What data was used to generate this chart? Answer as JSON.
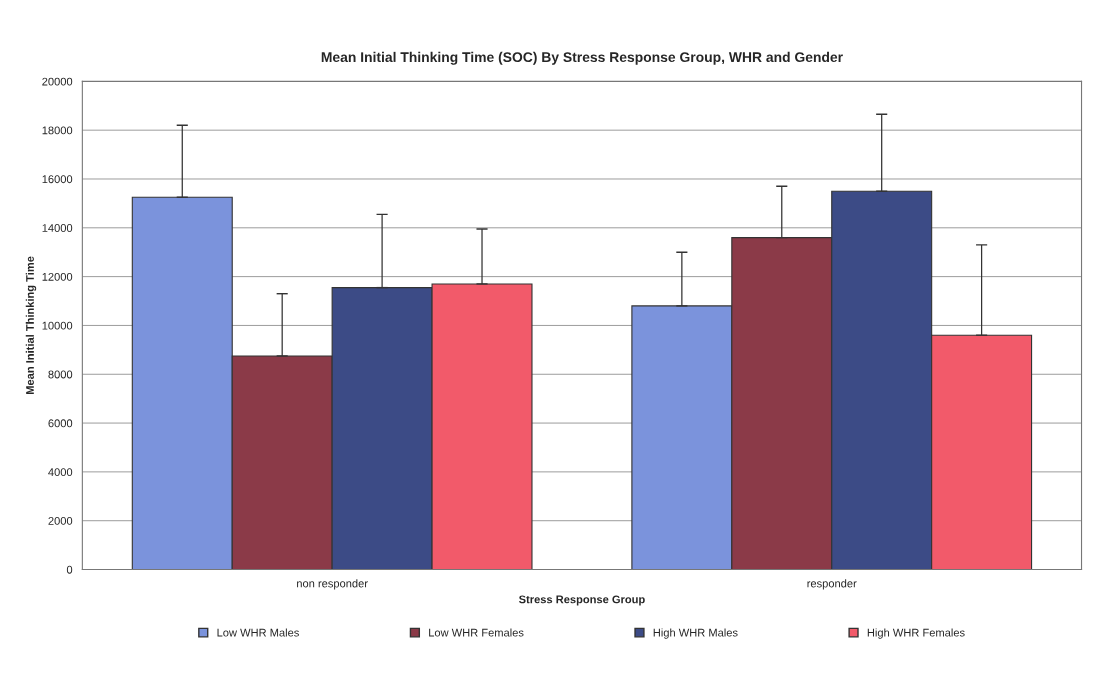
{
  "chart_data": {
    "type": "bar",
    "title": "Mean Initial Thinking Time (SOC) By Stress Response Group, WHR and Gender",
    "xlabel": "Stress Response Group",
    "ylabel": "Mean Initial Thinking Time",
    "categories": [
      "non responder",
      "responder"
    ],
    "series": [
      {
        "name": "Low WHR Males",
        "color": "#7b93dc",
        "values": [
          15250,
          10800
        ],
        "errors": [
          [
            15250,
            18200
          ],
          [
            10800,
            13000
          ]
        ]
      },
      {
        "name": "Low WHR Females",
        "color": "#8b3a48",
        "values": [
          8750,
          13600
        ],
        "errors": [
          [
            8750,
            11300
          ],
          [
            13600,
            15700
          ]
        ]
      },
      {
        "name": "High WHR Males",
        "color": "#3c4b86",
        "values": [
          11550,
          15500
        ],
        "errors": [
          [
            11550,
            14550
          ],
          [
            15500,
            18650
          ]
        ]
      },
      {
        "name": "High WHR Females",
        "color": "#f25a6a",
        "values": [
          11700,
          9600
        ],
        "errors": [
          [
            11700,
            13950
          ],
          [
            9600,
            13300
          ]
        ]
      }
    ],
    "ylim": [
      0,
      20000
    ],
    "yticks": [
      0,
      2000,
      4000,
      6000,
      8000,
      10000,
      12000,
      14000,
      16000,
      18000,
      20000
    ],
    "grid": "y",
    "legend": "bottom"
  }
}
